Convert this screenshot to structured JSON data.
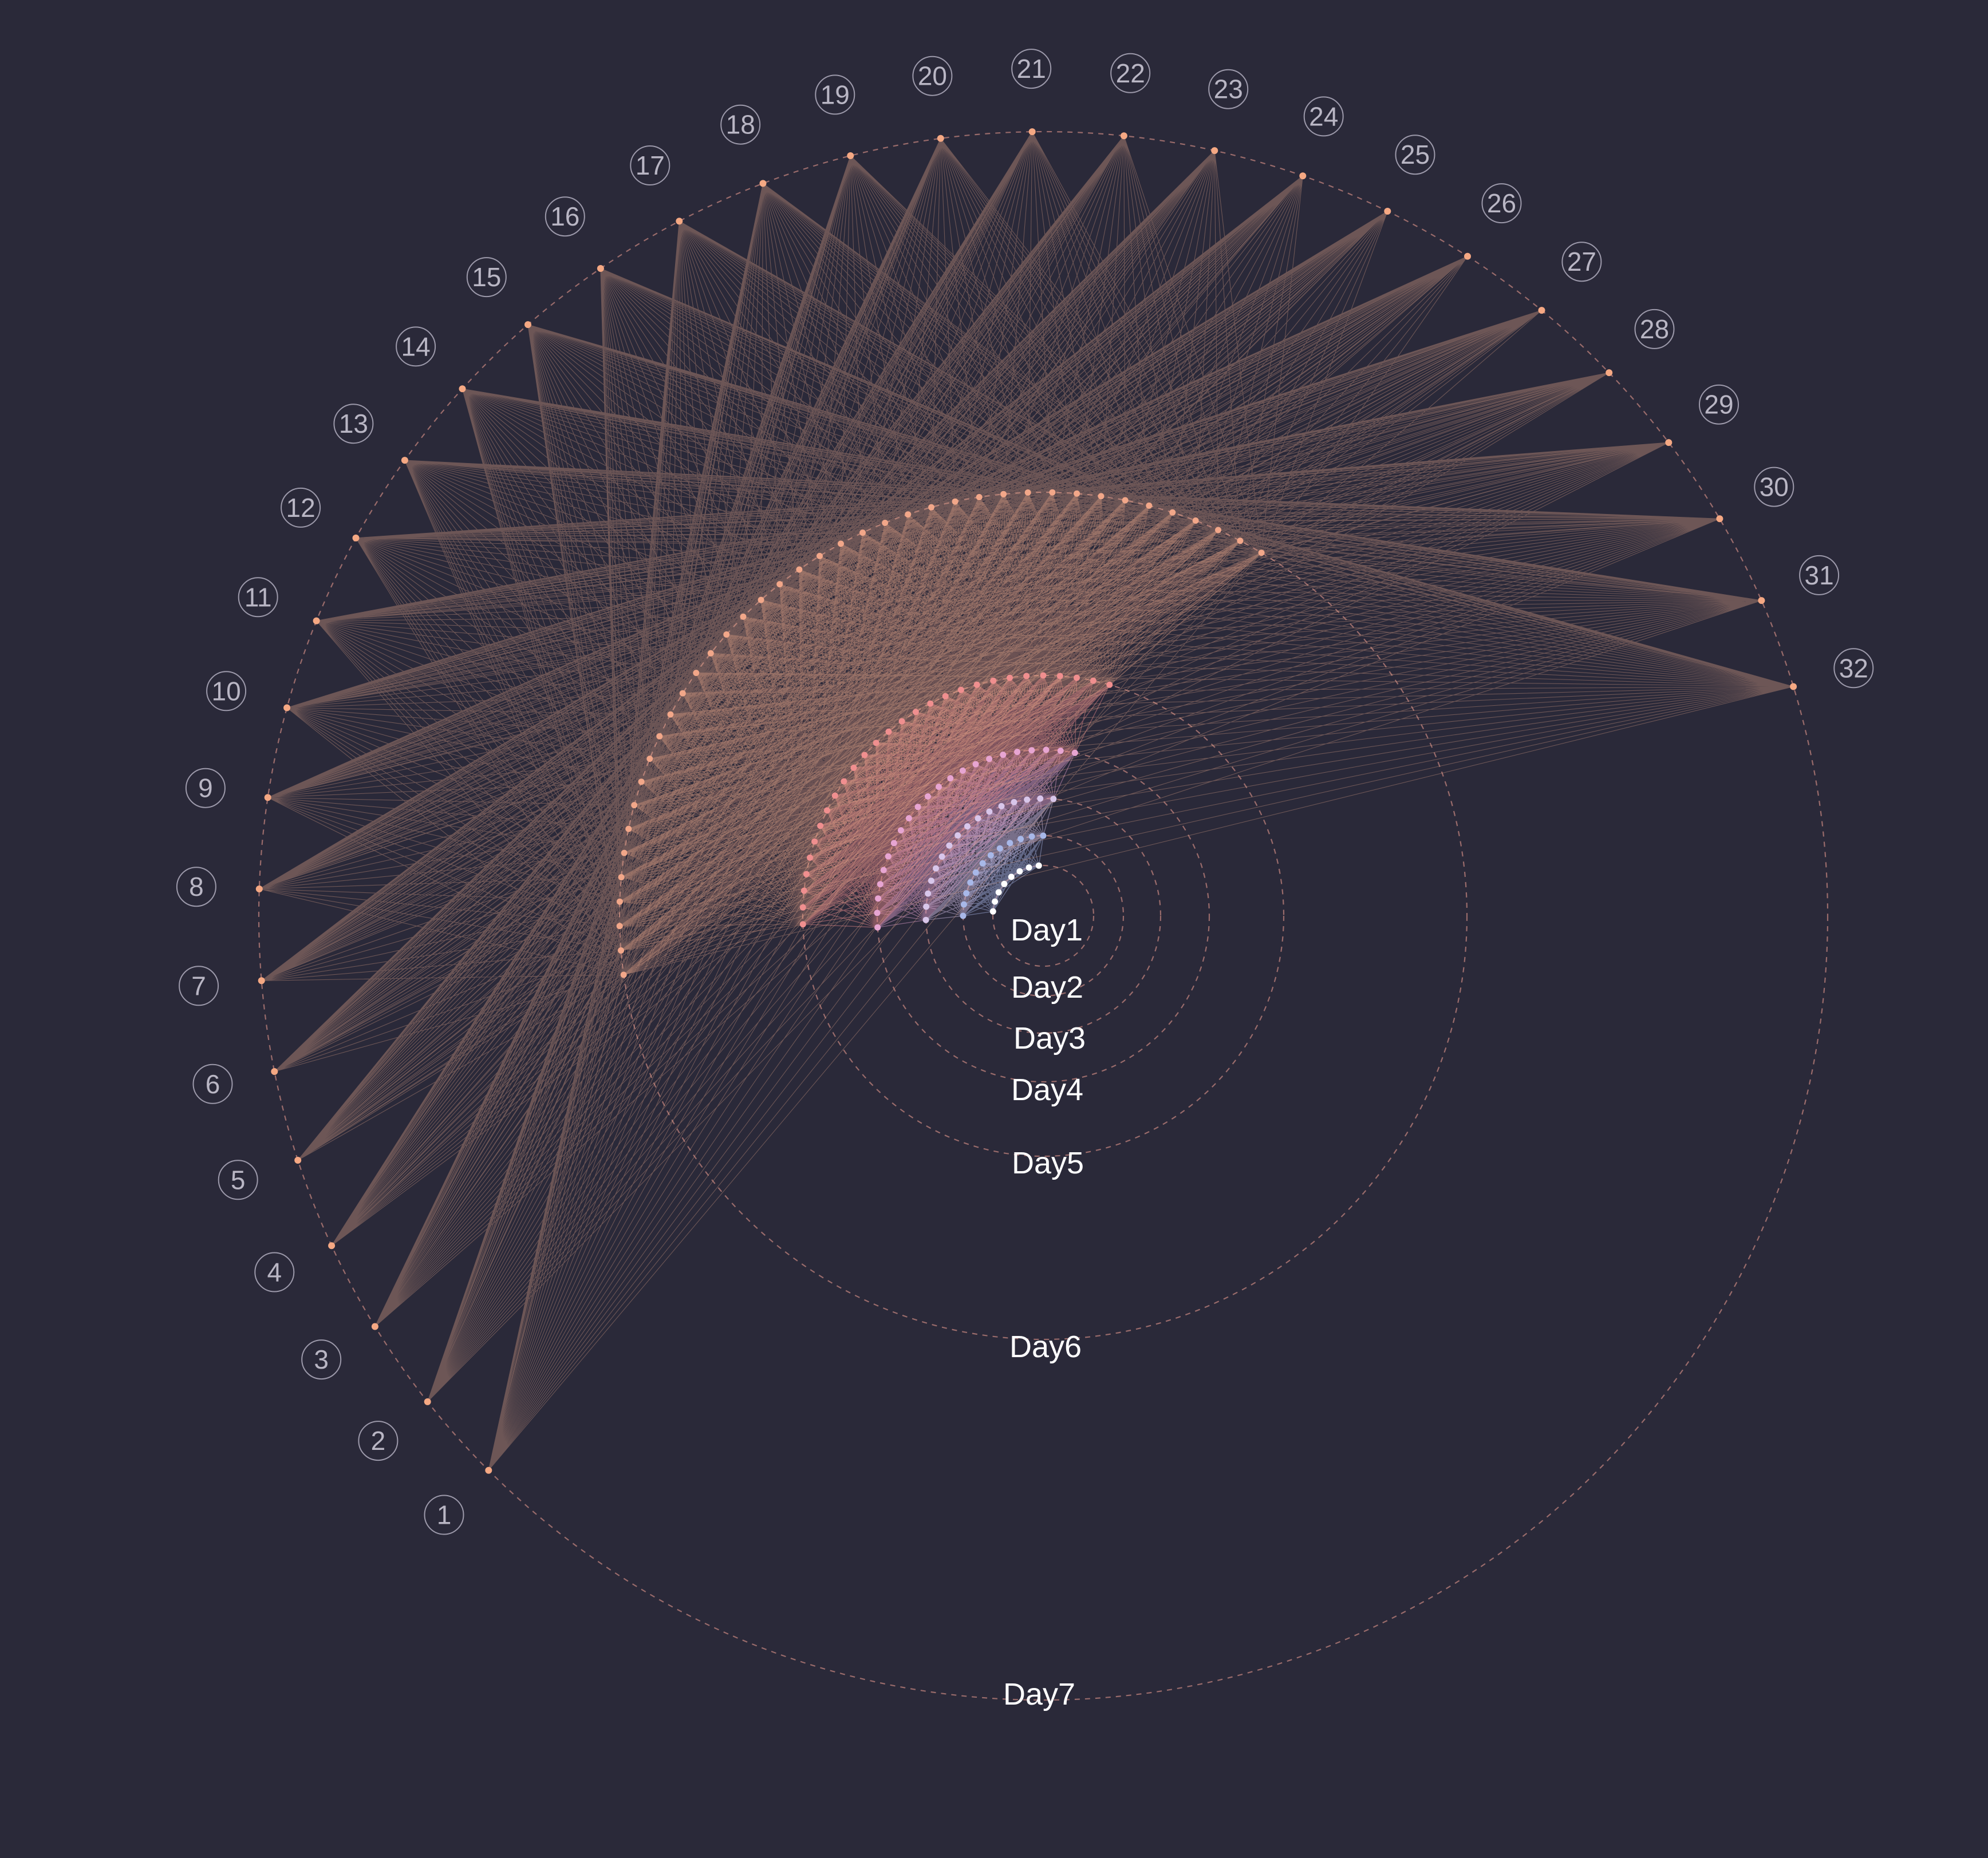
{
  "colors": {
    "background": "#2a2939",
    "ring": "#d58f86",
    "day_palette": [
      "#ffffff",
      "#a8b8e8",
      "#d8c6ea",
      "#e7a5d2",
      "#f08f8f",
      "#f2a789",
      "#f5b391"
    ]
  },
  "days": [
    {
      "label": "Day1",
      "nodes": 8
    },
    {
      "label": "Day2",
      "nodes": 12
    },
    {
      "label": "Day3",
      "nodes": 16
    },
    {
      "label": "Day4",
      "nodes": 22
    },
    {
      "label": "Day5",
      "nodes": 28
    },
    {
      "label": "Day6",
      "nodes": 40
    },
    {
      "label": "Day7",
      "nodes": 32
    }
  ],
  "outer_nodes": [
    "1",
    "2",
    "3",
    "4",
    "5",
    "6",
    "7",
    "8",
    "9",
    "10",
    "11",
    "12",
    "13",
    "14",
    "15",
    "16",
    "17",
    "18",
    "19",
    "20",
    "21",
    "22",
    "23",
    "24",
    "25",
    "26",
    "27",
    "28",
    "29",
    "30",
    "31",
    "32"
  ]
}
